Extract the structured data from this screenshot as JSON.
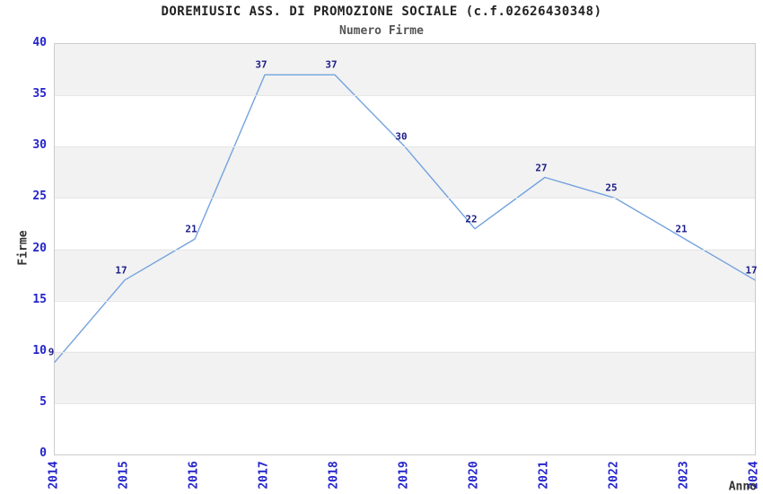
{
  "header": {
    "title": "DOREMIUSIC ASS. DI PROMOZIONE SOCIALE (c.f.02626430348)",
    "subtitle": "Numero Firme"
  },
  "chart_data": {
    "type": "line",
    "title": "DOREMIUSIC ASS. DI PROMOZIONE SOCIALE (c.f.02626430348)",
    "subtitle": "Numero Firme",
    "xlabel": "Anno",
    "ylabel": "Firme",
    "categories": [
      "2014",
      "2015",
      "2016",
      "2017",
      "2018",
      "2019",
      "2020",
      "2021",
      "2022",
      "2023",
      "2024"
    ],
    "values": [
      9,
      17,
      21,
      37,
      37,
      30,
      22,
      27,
      25,
      21,
      17
    ],
    "data_labels_shown": [
      9,
      17,
      21,
      37,
      37,
      30,
      22,
      27,
      25,
      21,
      17
    ],
    "ylim": [
      0,
      40
    ],
    "y_ticks": [
      0,
      5,
      10,
      15,
      20,
      25,
      30,
      35,
      40
    ],
    "grid": "horizontal gridlines with alternating gray/white bands every 5 units",
    "legend_position": "none",
    "colors": {
      "line": "#74A3DF",
      "tick_label": "#2323CC",
      "data_label": "#1C1C8A",
      "band": "#F2F2F2",
      "gridline": "#E6E6E6",
      "plot_border": "#CCCCCC",
      "title": "#222222",
      "subtitle": "#555555",
      "axis_title": "#333333",
      "background": "#FFFFFF"
    }
  }
}
